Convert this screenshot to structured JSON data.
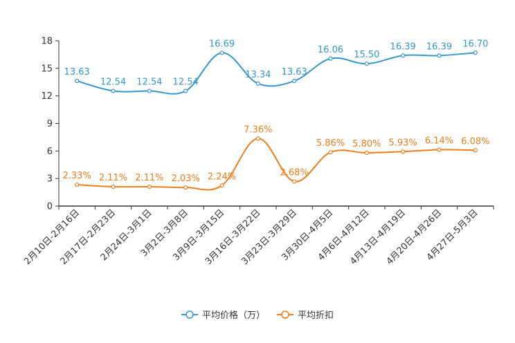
{
  "chart_data": {
    "type": "line",
    "title": "",
    "xlabel": "",
    "ylabel": "",
    "ylim": [
      0,
      18
    ],
    "yticks": [
      0,
      3,
      6,
      9,
      12,
      15,
      18
    ],
    "grid": false,
    "legend_position": "bottom-center",
    "categories": [
      "2月10日-2月16日",
      "2月17日-2月23日",
      "2月24日-3月1日",
      "3月2日-3月8日",
      "3月9日-3月15日",
      "3月16日-3月22日",
      "3月23日-3月29日",
      "3月30日-4月5日",
      "4月6日-4月12日",
      "4月13日-4月19日",
      "4月20日-4月26日",
      "4月27日-5月3日"
    ],
    "series": [
      {
        "name": "平均价格（万）",
        "color": "#3398c9",
        "values": [
          13.63,
          12.54,
          12.54,
          12.54,
          16.69,
          13.34,
          13.63,
          16.06,
          15.5,
          16.39,
          16.39,
          16.7
        ],
        "labels": [
          "13.63",
          "12.54",
          "12.54",
          "12.54",
          "16.69",
          "13.34",
          "13.63",
          "16.06",
          "15.50",
          "16.39",
          "16.39",
          "16.70"
        ]
      },
      {
        "name": "平均折扣",
        "color": "#f07c1a",
        "values": [
          2.33,
          2.11,
          2.11,
          2.03,
          2.24,
          7.36,
          2.68,
          5.86,
          5.8,
          5.93,
          6.14,
          6.08
        ],
        "labels": [
          "2.33%",
          "2.11%",
          "2.11%",
          "2.03%",
          "2.24%",
          "7.36%",
          "2.68%",
          "5.86%",
          "5.80%",
          "5.93%",
          "6.14%",
          "6.08%"
        ]
      }
    ]
  }
}
